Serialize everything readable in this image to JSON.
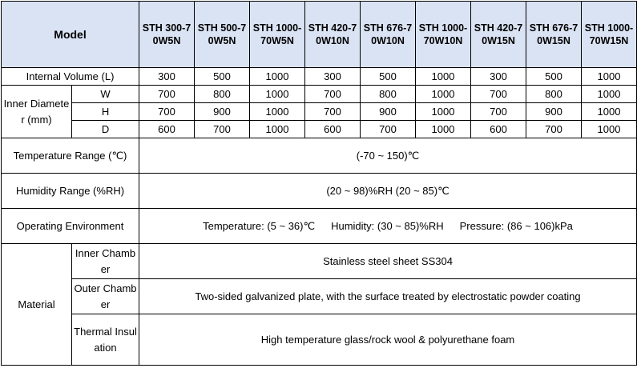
{
  "header": {
    "label": "Model",
    "models": [
      "STH 300-70W5N",
      "STH 500-70W5N",
      "STH 1000-70W5N",
      "STH 420-70W10N",
      "STH 676-70W10N",
      "STH 1000-70W10N",
      "STH 420-70W15N",
      "STH 676-70W15N",
      "STH 1000-70W15N"
    ]
  },
  "internal_volume": {
    "label": "Internal Volume (L)",
    "values": [
      300,
      500,
      1000,
      300,
      500,
      1000,
      300,
      500,
      1000
    ]
  },
  "inner_diameter": {
    "label": "Inner Diameter (mm)",
    "dims": [
      {
        "label": "W",
        "values": [
          700,
          800,
          1000,
          700,
          800,
          1000,
          700,
          800,
          1000
        ]
      },
      {
        "label": "H",
        "values": [
          700,
          900,
          1000,
          700,
          900,
          1000,
          700,
          900,
          1000
        ]
      },
      {
        "label": "D",
        "values": [
          600,
          700,
          1000,
          600,
          700,
          1000,
          600,
          700,
          1000
        ]
      }
    ]
  },
  "temperature_range": {
    "label": "Temperature Range (℃)",
    "value": "(-70 ~ 150)℃"
  },
  "humidity_range": {
    "label": "Humidity Range (%RH)",
    "value": "(20 ~ 98)%RH (20 ~ 85)℃"
  },
  "operating_environment": {
    "label": "Operating Environment",
    "items": [
      "Temperature: (5 ~ 36)℃",
      "Humidity: (30 ~ 85)%RH",
      "Pressure: (86 ~ 106)kPa"
    ]
  },
  "material": {
    "label": "Material",
    "items": [
      {
        "label": "Inner Chamber",
        "value": "Stainless steel sheet SS304"
      },
      {
        "label": "Outer Chamber",
        "value": "Two-sided galvanized plate, with the surface treated by electrostatic powder coating"
      },
      {
        "label": "Thermal Insulation",
        "value": "High temperature glass/rock wool & polyurethane foam"
      }
    ]
  }
}
